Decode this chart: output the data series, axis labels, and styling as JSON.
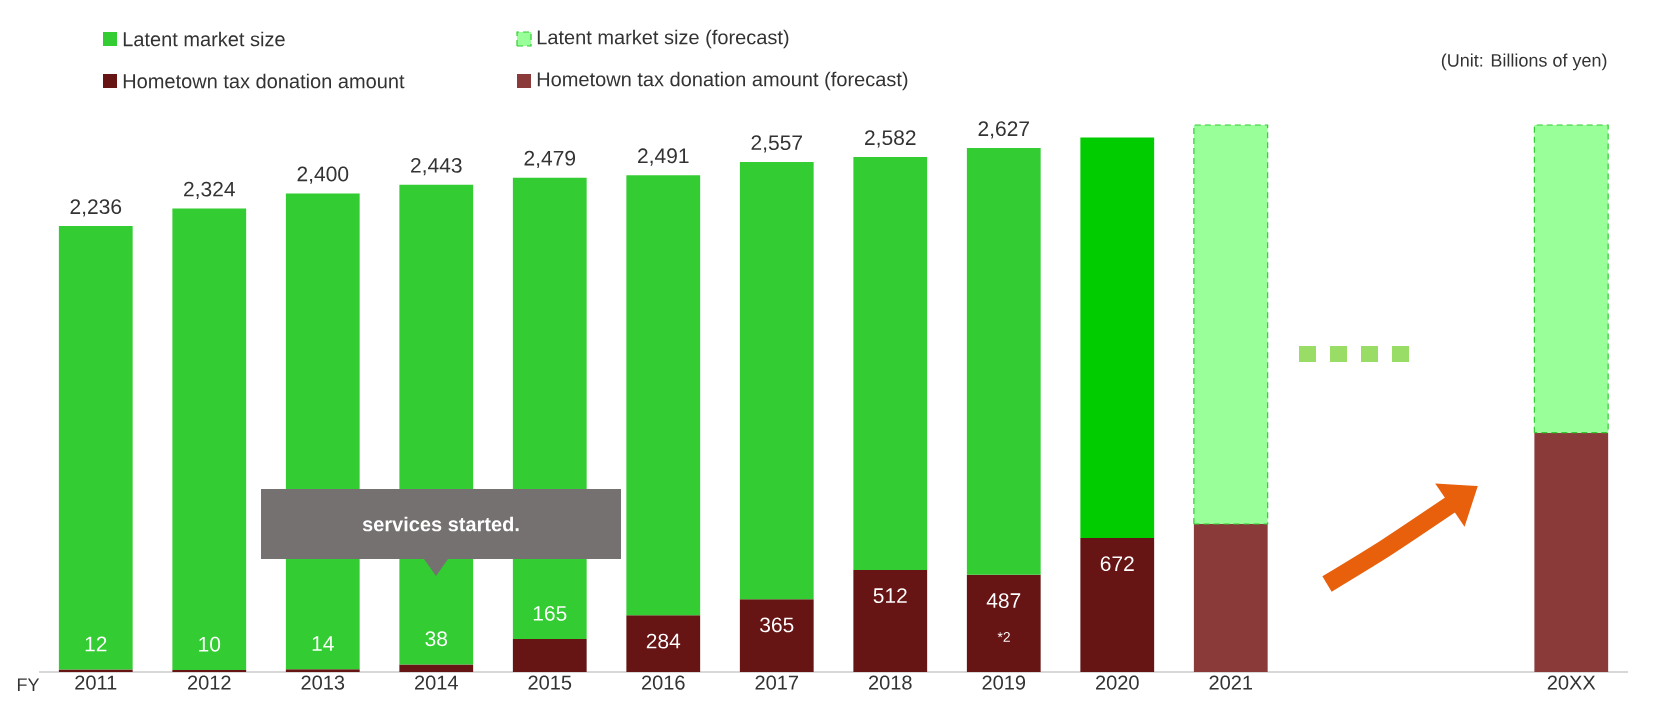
{
  "chart_data": {
    "type": "bar",
    "stacked": true,
    "legend": "top left",
    "xlabel": "FY",
    "categories": [
      "2011",
      "2012",
      "2013",
      "2014",
      "2015",
      "2016",
      "2017",
      "2018",
      "2019",
      "2020",
      "2021",
      null,
      null,
      "20XX"
    ],
    "series": [
      {
        "name": "Hometown tax donation amount",
        "color": "#661414",
        "values": [
          12,
          10,
          14,
          38,
          165,
          284,
          365,
          512,
          487,
          672,
          null,
          null,
          null,
          null
        ],
        "value_labels": [
          "12",
          "10",
          "14",
          "38",
          "165",
          "284",
          "365",
          "512",
          "487",
          "672",
          null,
          null,
          null,
          null
        ]
      },
      {
        "name": "Latent market size",
        "color": "#33cc33",
        "colors": [
          "#33cc33",
          "#33cc33",
          "#33cc33",
          "#33cc33",
          "#33cc33",
          "#33cc33",
          "#33cc33",
          "#33cc33",
          "#33cc33",
          "#00cc00",
          null,
          null,
          null,
          null
        ],
        "values": [
          2224,
          2314,
          2386,
          2405,
          2314,
          2207,
          2192,
          2070,
          2140,
          2008,
          null,
          null,
          null,
          null
        ]
      },
      {
        "name": "Hometown tax donation amount (forecast)",
        "color": "#8b3a3a",
        "values": [
          null,
          null,
          null,
          null,
          null,
          null,
          null,
          null,
          null,
          null,
          742,
          null,
          null,
          1200
        ]
      },
      {
        "name": "Latent market size (forecast)",
        "color": "#99ff99",
        "line_style": "dashed",
        "values": [
          null,
          null,
          null,
          null,
          null,
          null,
          null,
          null,
          null,
          null,
          2001,
          null,
          null,
          1543
        ]
      }
    ],
    "totals": [
      "2,236",
      "2,324",
      "2,400",
      "2,443",
      "2,479",
      "2,491",
      "2,557",
      "2,582",
      "2,627",
      null,
      null,
      null,
      null,
      null
    ],
    "annotations": [
      "(Unit: Billions of yen)",
      "services started.",
      "*2"
    ]
  }
}
